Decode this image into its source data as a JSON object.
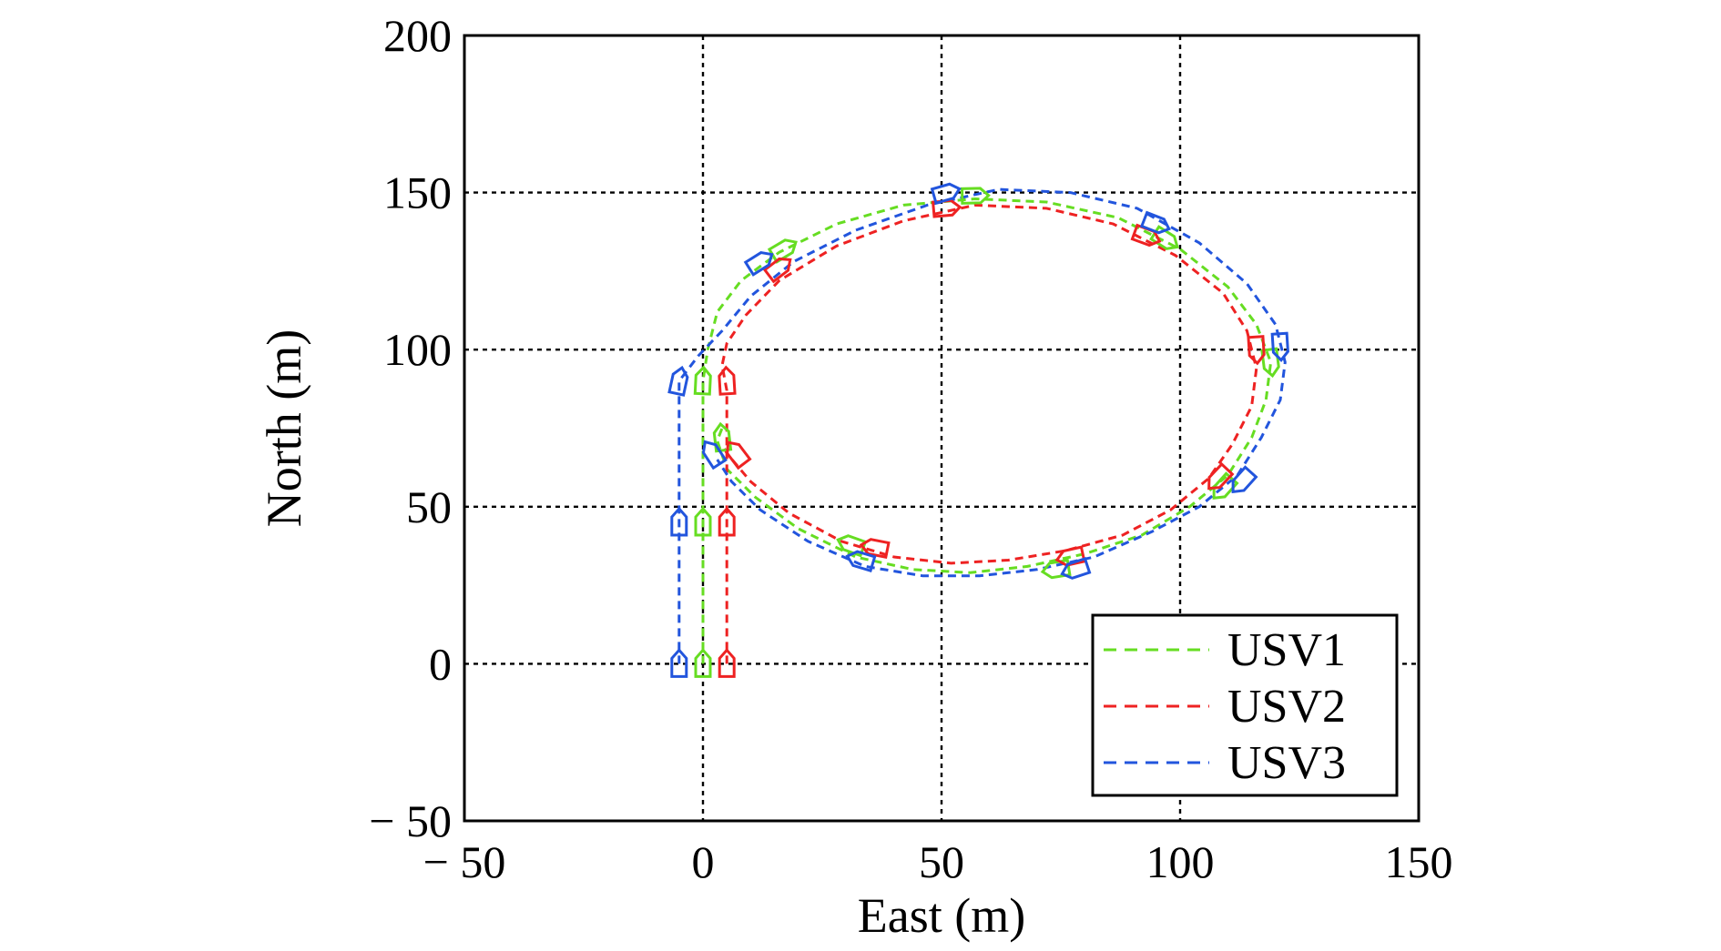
{
  "chart_data": {
    "type": "line",
    "xlabel": "East (m)",
    "ylabel": "North (m)",
    "xlim": [
      -50,
      150
    ],
    "ylim": [
      -50,
      200
    ],
    "x_ticks": [
      -50,
      0,
      50,
      100,
      150
    ],
    "y_ticks": [
      -50,
      0,
      50,
      100,
      150,
      200
    ],
    "x_tick_labels": [
      "− 50",
      "0",
      "50",
      "100",
      "150"
    ],
    "y_tick_labels": [
      "− 50",
      "0",
      "50",
      "100",
      "150",
      "200"
    ],
    "grid": true,
    "legend_position": "bottom-right",
    "series": [
      {
        "name": "USV1",
        "color": "#66dd22",
        "points": [
          [
            0,
            0
          ],
          [
            0,
            20
          ],
          [
            0,
            45
          ],
          [
            0,
            70
          ],
          [
            0,
            90
          ],
          [
            1,
            100
          ],
          [
            3,
            112
          ],
          [
            8,
            122
          ],
          [
            16,
            131
          ],
          [
            28,
            140
          ],
          [
            42,
            146
          ],
          [
            57,
            148
          ],
          [
            72,
            147
          ],
          [
            87,
            142
          ],
          [
            100,
            132
          ],
          [
            110,
            120
          ],
          [
            116,
            108
          ],
          [
            119,
            96
          ],
          [
            118,
            84
          ],
          [
            115,
            72
          ],
          [
            110,
            60
          ],
          [
            102,
            50
          ],
          [
            92,
            41
          ],
          [
            80,
            35
          ],
          [
            68,
            31
          ],
          [
            56,
            29
          ],
          [
            44,
            30
          ],
          [
            32,
            34
          ],
          [
            20,
            43
          ],
          [
            11,
            53
          ],
          [
            5,
            62
          ],
          [
            3,
            71
          ],
          [
            4,
            75
          ]
        ]
      },
      {
        "name": "USV2",
        "color": "#ee2222",
        "points": [
          [
            5,
            0
          ],
          [
            5,
            20
          ],
          [
            5,
            45
          ],
          [
            5,
            70
          ],
          [
            5,
            87
          ],
          [
            4,
            95
          ],
          [
            5,
            102
          ],
          [
            9,
            111
          ],
          [
            16,
            122
          ],
          [
            28,
            133
          ],
          [
            42,
            141
          ],
          [
            57,
            146
          ],
          [
            72,
            145
          ],
          [
            86,
            140
          ],
          [
            99,
            130
          ],
          [
            109,
            118
          ],
          [
            114,
            106
          ],
          [
            116,
            94
          ],
          [
            115,
            82
          ],
          [
            111,
            70
          ],
          [
            106,
            59
          ],
          [
            98,
            49
          ],
          [
            88,
            41
          ],
          [
            76,
            36
          ],
          [
            64,
            33
          ],
          [
            52,
            32
          ],
          [
            40,
            34
          ],
          [
            29,
            39
          ],
          [
            18,
            48
          ],
          [
            10,
            58
          ],
          [
            5,
            67
          ],
          [
            4,
            70
          ]
        ]
      },
      {
        "name": "USV3",
        "color": "#2255dd",
        "points": [
          [
            -5,
            0
          ],
          [
            -5,
            20
          ],
          [
            -5,
            45
          ],
          [
            -5,
            70
          ],
          [
            -5,
            90
          ],
          [
            -1,
            98
          ],
          [
            4,
            106
          ],
          [
            10,
            117
          ],
          [
            19,
            128
          ],
          [
            32,
            138
          ],
          [
            47,
            146
          ],
          [
            62,
            151
          ],
          [
            77,
            150
          ],
          [
            91,
            145
          ],
          [
            104,
            134
          ],
          [
            114,
            121
          ],
          [
            120,
            108
          ],
          [
            122,
            96
          ],
          [
            121,
            84
          ],
          [
            117,
            72
          ],
          [
            112,
            60
          ],
          [
            104,
            50
          ],
          [
            94,
            42
          ],
          [
            82,
            34
          ],
          [
            70,
            30
          ],
          [
            58,
            28
          ],
          [
            46,
            28
          ],
          [
            34,
            31
          ],
          [
            22,
            39
          ],
          [
            12,
            49
          ],
          [
            6,
            58
          ],
          [
            3,
            65
          ]
        ]
      }
    ],
    "vessel_markers": [
      {
        "series": "USV1",
        "points": [
          [
            0,
            0
          ],
          [
            0,
            45
          ],
          [
            0,
            90
          ],
          [
            17,
            132
          ],
          [
            57,
            149
          ],
          [
            97,
            135
          ],
          [
            119,
            96
          ],
          [
            109,
            56
          ],
          [
            74,
            30
          ],
          [
            31,
            38
          ],
          [
            4,
            72
          ]
        ]
      },
      {
        "series": "USV2",
        "points": [
          [
            5,
            0
          ],
          [
            5,
            45
          ],
          [
            5,
            90
          ],
          [
            16,
            126
          ],
          [
            51,
            145
          ],
          [
            93,
            136
          ],
          [
            116,
            100
          ],
          [
            108,
            59
          ],
          [
            77,
            34
          ],
          [
            36,
            37
          ],
          [
            7,
            67
          ]
        ]
      },
      {
        "series": "USV3",
        "points": [
          [
            -5,
            0
          ],
          [
            -5,
            45
          ],
          [
            -5,
            90
          ],
          [
            12,
            128
          ],
          [
            51,
            150
          ],
          [
            95,
            140
          ],
          [
            121,
            101
          ],
          [
            113,
            58
          ],
          [
            78,
            30
          ],
          [
            33,
            33
          ],
          [
            2,
            67
          ]
        ]
      }
    ]
  }
}
